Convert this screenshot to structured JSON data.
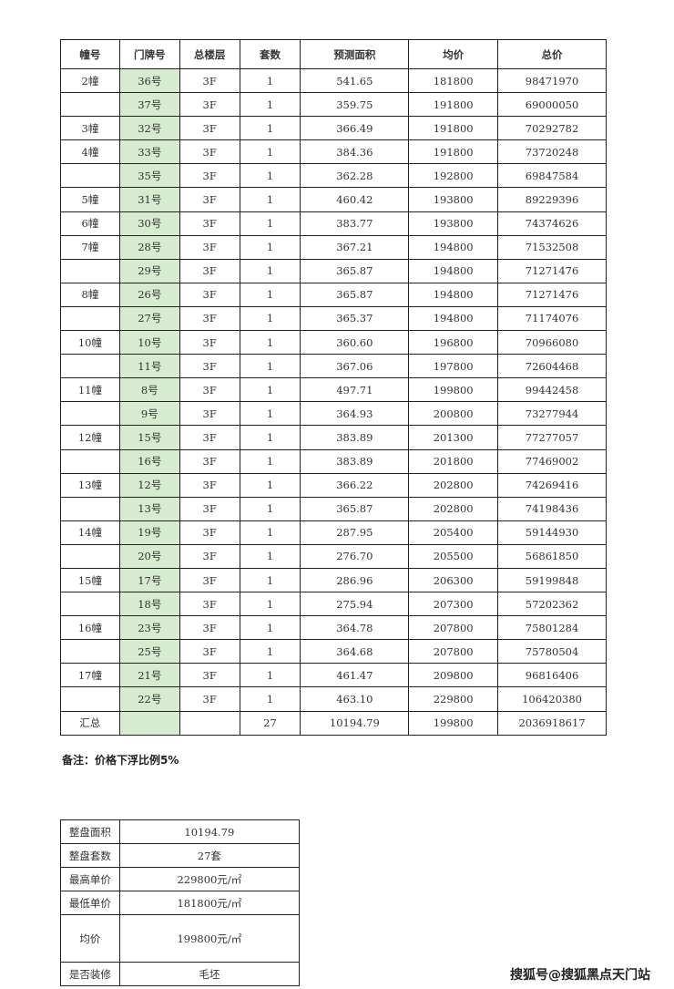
{
  "main_table": {
    "headers": [
      "幢号",
      "门牌号",
      "总楼层",
      "套数",
      "预测面积",
      "均价",
      "总价"
    ],
    "rows": [
      [
        "2幢",
        "36号",
        "3F",
        "1",
        "541.65",
        "181800",
        "98471970"
      ],
      [
        "",
        "37号",
        "3F",
        "1",
        "359.75",
        "191800",
        "69000050"
      ],
      [
        "3幢",
        "32号",
        "3F",
        "1",
        "366.49",
        "191800",
        "70292782"
      ],
      [
        "4幢",
        "33号",
        "3F",
        "1",
        "384.36",
        "191800",
        "73720248"
      ],
      [
        "",
        "35号",
        "3F",
        "1",
        "362.28",
        "192800",
        "69847584"
      ],
      [
        "5幢",
        "31号",
        "3F",
        "1",
        "460.42",
        "193800",
        "89229396"
      ],
      [
        "6幢",
        "30号",
        "3F",
        "1",
        "383.77",
        "193800",
        "74374626"
      ],
      [
        "7幢",
        "28号",
        "3F",
        "1",
        "367.21",
        "194800",
        "71532508"
      ],
      [
        "",
        "29号",
        "3F",
        "1",
        "365.87",
        "194800",
        "71271476"
      ],
      [
        "8幢",
        "26号",
        "3F",
        "1",
        "365.87",
        "194800",
        "71271476"
      ],
      [
        "",
        "27号",
        "3F",
        "1",
        "365.37",
        "194800",
        "71174076"
      ],
      [
        "10幢",
        "10号",
        "3F",
        "1",
        "360.60",
        "196800",
        "70966080"
      ],
      [
        "",
        "11号",
        "3F",
        "1",
        "367.06",
        "197800",
        "72604468"
      ],
      [
        "11幢",
        "8号",
        "3F",
        "1",
        "497.71",
        "199800",
        "99442458"
      ],
      [
        "",
        "9号",
        "3F",
        "1",
        "364.93",
        "200800",
        "73277944"
      ],
      [
        "12幢",
        "15号",
        "3F",
        "1",
        "383.89",
        "201300",
        "77277057"
      ],
      [
        "",
        "16号",
        "3F",
        "1",
        "383.89",
        "201800",
        "77469002"
      ],
      [
        "13幢",
        "12号",
        "3F",
        "1",
        "366.22",
        "202800",
        "74269416"
      ],
      [
        "",
        "13号",
        "3F",
        "1",
        "365.87",
        "202800",
        "74198436"
      ],
      [
        "14幢",
        "19号",
        "3F",
        "1",
        "287.95",
        "205400",
        "59144930"
      ],
      [
        "",
        "20号",
        "3F",
        "1",
        "276.70",
        "205500",
        "56861850"
      ],
      [
        "15幢",
        "17号",
        "3F",
        "1",
        "286.96",
        "206300",
        "59199848"
      ],
      [
        "",
        "18号",
        "3F",
        "1",
        "275.94",
        "207300",
        "57202362"
      ],
      [
        "16幢",
        "23号",
        "3F",
        "1",
        "364.78",
        "207800",
        "75801284"
      ],
      [
        "",
        "25号",
        "3F",
        "1",
        "364.68",
        "207800",
        "75780504"
      ],
      [
        "17幢",
        "21号",
        "3F",
        "1",
        "461.47",
        "209800",
        "96816406"
      ],
      [
        "",
        "22号",
        "3F",
        "1",
        "463.10",
        "229800",
        "106420380"
      ]
    ],
    "total": [
      "汇总",
      "",
      "",
      "27",
      "10194.79",
      "199800",
      "2036918617"
    ],
    "door_column_color": "#d6ebcf"
  },
  "note": "备注：价格下浮比例5%",
  "summary": [
    {
      "label": "整盘面积",
      "value": "10194.79"
    },
    {
      "label": "整盘套数",
      "value": "27套"
    },
    {
      "label": "最高单价",
      "value": "229800元/㎡"
    },
    {
      "label": "最低单价",
      "value": "181800元/㎡"
    },
    {
      "label": "均价",
      "value": "199800元/㎡"
    },
    {
      "label": "是否装修",
      "value": "毛坯"
    }
  ],
  "watermark": "搜狐号@搜狐黑点天门站"
}
